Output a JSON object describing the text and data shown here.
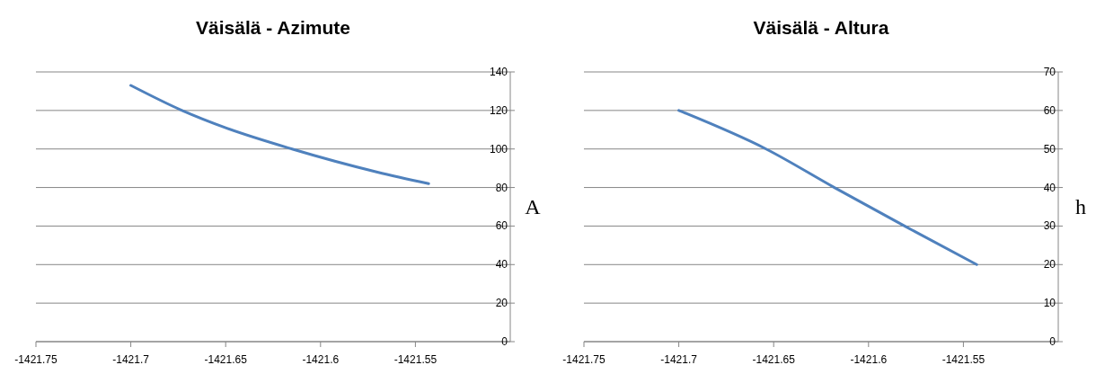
{
  "chart_data": [
    {
      "type": "line",
      "title": "Väisälä - Azimute",
      "ylabel": "A",
      "x": [
        -1421.7,
        -1421.673,
        -1421.65,
        -1421.615,
        -1421.57,
        -1421.543
      ],
      "series": [
        {
          "color": "#4f81bd",
          "values": [
            133,
            120,
            111,
            100,
            88,
            82
          ]
        }
      ],
      "xlim": [
        -1421.75,
        -1421.5
      ],
      "xticks": [
        -1421.75,
        -1421.7,
        -1421.65,
        -1421.6,
        -1421.55
      ],
      "ylim": [
        0,
        140
      ],
      "yticks": [
        0,
        20,
        40,
        60,
        80,
        100,
        120,
        140
      ],
      "grid": "y",
      "marker": "none"
    },
    {
      "type": "line",
      "title": "Väisälä - Altura",
      "ylabel": "h",
      "x": [
        -1421.7,
        -1421.654,
        -1421.618,
        -1421.581,
        -1421.543
      ],
      "series": [
        {
          "color": "#4f81bd",
          "values": [
            60,
            50,
            40,
            30,
            20
          ]
        }
      ],
      "xlim": [
        -1421.75,
        -1421.5
      ],
      "xticks": [
        -1421.75,
        -1421.7,
        -1421.65,
        -1421.6,
        -1421.55
      ],
      "ylim": [
        0,
        70
      ],
      "yticks": [
        0,
        10,
        20,
        30,
        40,
        50,
        60,
        70
      ],
      "grid": "y",
      "marker": "none"
    }
  ]
}
